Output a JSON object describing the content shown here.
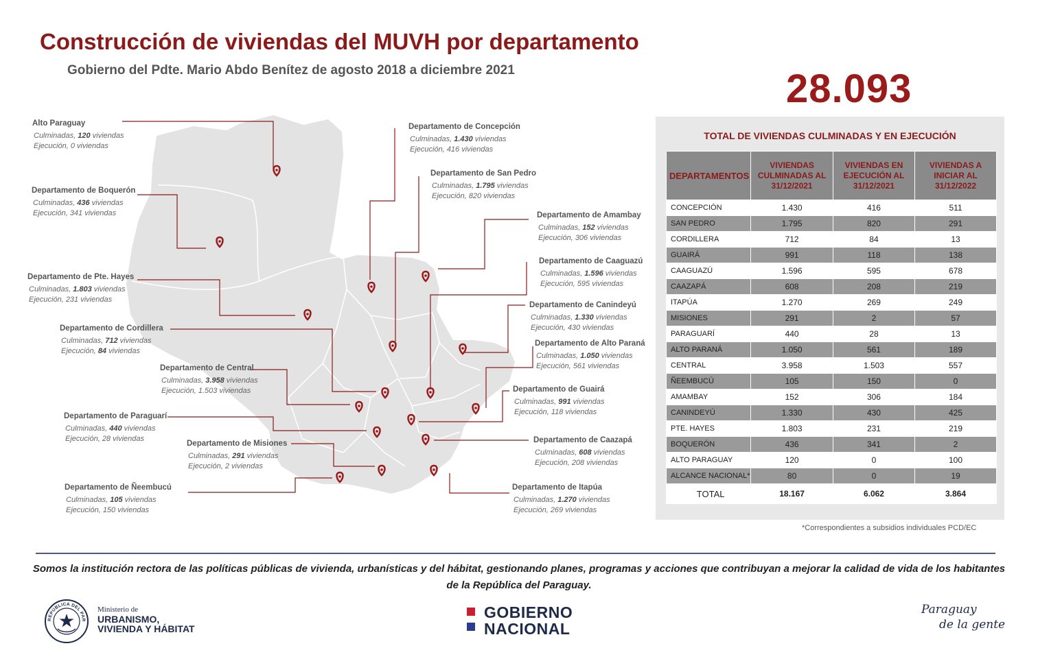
{
  "header": {
    "title": "Construcción de viviendas del MUVH por departamento",
    "subtitle": "Gobierno del Pdte. Mario Abdo Benítez de agosto 2018 a diciembre 2021",
    "grand_total": "28.093"
  },
  "callouts": [
    {
      "name": "Alto Paraguay",
      "culm_prefix": "Culminadas, ",
      "culm": "120",
      "ejec_prefix": "Ejecución, ",
      "ejec": "0",
      "unit": " viviendas"
    },
    {
      "name": "Departamento de Boquerón",
      "culm_prefix": "Culminadas, ",
      "culm": "436",
      "ejec_prefix": "Ejecución, ",
      "ejec": "341",
      "unit": " viviendas"
    },
    {
      "name": "Departamento de Pte. Hayes",
      "culm_prefix": "Culminadas, ",
      "culm": "1.803",
      "ejec_prefix": "Ejecución, ",
      "ejec": "231",
      "unit": " viviendas"
    },
    {
      "name": "Departamento de Cordillera",
      "culm_prefix": "Culminadas, ",
      "culm": "712",
      "ejec_prefix": "Ejecución, ",
      "ejec": "84",
      "unit": " viviendas"
    },
    {
      "name": "Departamento de Central",
      "culm_prefix": "Culminadas, ",
      "culm": "3.958",
      "ejec_prefix": "Ejecución, ",
      "ejec": "1.503",
      "unit": " viviendas"
    },
    {
      "name": "Departamento de Paraguarí",
      "culm_prefix": "Culminadas, ",
      "culm": "440",
      "ejec_prefix": "Ejecución, ",
      "ejec": "28",
      "unit": " viviendas"
    },
    {
      "name": "Departamento de Misiones",
      "culm_prefix": "Culminadas, ",
      "culm": "291",
      "ejec_prefix": "Ejecución, ",
      "ejec": "2",
      "unit": " viviendas"
    },
    {
      "name": "Departamento de Ñeembucú",
      "culm_prefix": "Culminadas, ",
      "culm": "105",
      "ejec_prefix": "Ejecución, ",
      "ejec": "150",
      "unit": " viviendas"
    },
    {
      "name": "Departamento de Concepción",
      "culm_prefix": "Culminadas, ",
      "culm": "1.430",
      "ejec_prefix": "Ejecución, ",
      "ejec": "416",
      "unit": " viviendas"
    },
    {
      "name": "Departamento de San Pedro",
      "culm_prefix": "Culminadas, ",
      "culm": "1.795",
      "ejec_prefix": "Ejecución, ",
      "ejec": "820",
      "unit": " viviendas"
    },
    {
      "name": "Departamento de Amambay",
      "culm_prefix": "Culminadas, ",
      "culm": "152",
      "ejec_prefix": "Ejecución, ",
      "ejec": "306",
      "unit": " viviendas"
    },
    {
      "name": "Departamento de Caaguazú",
      "culm_prefix": "Culminadas, ",
      "culm": "1.596",
      "ejec_prefix": "Ejecución, ",
      "ejec": "595",
      "unit": " viviendas"
    },
    {
      "name": "Departamento de Canindeyú",
      "culm_prefix": "Culminadas, ",
      "culm": "1.330",
      "ejec_prefix": "Ejecución, ",
      "ejec": "430",
      "unit": " viviendas"
    },
    {
      "name": "Departamento de Alto Paraná",
      "culm_prefix": "Culminadas, ",
      "culm": "1.050",
      "ejec_prefix": "Ejecución, ",
      "ejec": "561",
      "unit": " viviendas"
    },
    {
      "name": "Departamento de Guairá",
      "culm_prefix": "Culminadas, ",
      "culm": "991",
      "ejec_prefix": "Ejecución, ",
      "ejec": "118",
      "unit": " viviendas"
    },
    {
      "name": "Departamento de Caazapá",
      "culm_prefix": "Culminadas, ",
      "culm": "608",
      "ejec_prefix": "Ejecución, ",
      "ejec": "208",
      "unit": " viviendas"
    },
    {
      "name": "Departamento de Itapúa",
      "culm_prefix": "Culminadas, ",
      "culm": "1.270",
      "ejec_prefix": "Ejecución, ",
      "ejec": "269",
      "unit": " viviendas"
    }
  ],
  "table": {
    "title": "TOTAL DE VIVIENDAS CULMINADAS Y EN EJECUCIÓN",
    "headers": [
      "DEPARTAMENTOS",
      "VIVIENDAS CULMINADAS AL 31/12/2021",
      "VIVIENDAS EN EJECUCIÓN AL 31/12/2021",
      "VIVIENDAS A INICIAR AL 31/12/2022"
    ],
    "rows": [
      [
        "CONCEPCIÓN",
        "1.430",
        "416",
        "511"
      ],
      [
        "SAN PEDRO",
        "1.795",
        "820",
        "291"
      ],
      [
        "CORDILLERA",
        "712",
        "84",
        "13"
      ],
      [
        "GUAIRÁ",
        "991",
        "118",
        "138"
      ],
      [
        "CAAGUAZÚ",
        "1.596",
        "595",
        "678"
      ],
      [
        "CAAZAPÁ",
        "608",
        "208",
        "219"
      ],
      [
        "ITAPÚA",
        "1.270",
        "269",
        "249"
      ],
      [
        "MISIONES",
        "291",
        "2",
        "57"
      ],
      [
        "PARAGUARÍ",
        "440",
        "28",
        "13"
      ],
      [
        "ALTO PARANÁ",
        "1.050",
        "561",
        "189"
      ],
      [
        "CENTRAL",
        "3.958",
        "1.503",
        "557"
      ],
      [
        "ÑEEMBUCÚ",
        "105",
        "150",
        "0"
      ],
      [
        "AMAMBAY",
        "152",
        "306",
        "184"
      ],
      [
        "CANINDEYÚ",
        "1.330",
        "430",
        "425"
      ],
      [
        "PTE. HAYES",
        "1.803",
        "231",
        "219"
      ],
      [
        "BOQUERÓN",
        "436",
        "341",
        "2"
      ],
      [
        "ALTO PARAGUAY",
        "120",
        "0",
        "100"
      ],
      [
        "ALCANCE NACIONAL*",
        "80",
        "0",
        "19"
      ]
    ],
    "total": [
      "TOTAL",
      "18.167",
      "6.062",
      "3.864"
    ],
    "footnote": "*Correspondientes a subsidios individuales PCD/EC"
  },
  "footer": {
    "mission": "Somos la institución rectora de las políticas públicas de vivienda, urbanísticas y del hábitat, gestionando planes, programas y acciones que contribuyan a mejorar la calidad de vida de los habitantes de la República del Paraguay.",
    "ministry_line1": "Ministerio de",
    "ministry_line2": "URBANISMO,",
    "ministry_line3": "VIVIENDA Y HÁBITAT",
    "seal_text": "REPÚBLICA DEL PARAGUAY",
    "gob_line1": "GOBIERNO",
    "gob_line2": "NACIONAL",
    "slogan_line1": "Paraguay",
    "slogan_line2": "de la gente"
  },
  "colors": {
    "accent": "#8b1a1a",
    "navy": "#1e2a4a",
    "map_fill": "#e3e3e3",
    "flag_red": "#c8202f",
    "flag_blue": "#2a3d8f"
  }
}
